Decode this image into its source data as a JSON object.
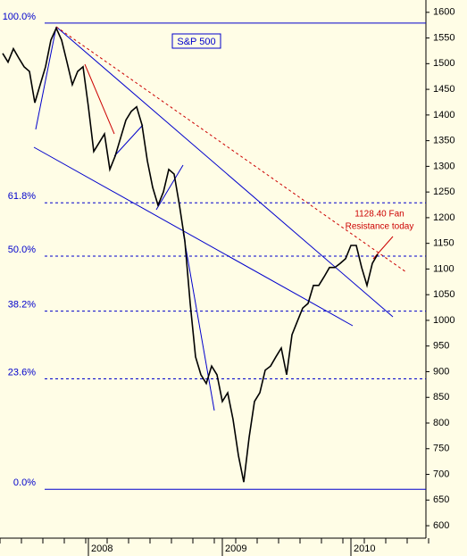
{
  "chart_data": {
    "type": "line",
    "title": "S&P 500",
    "categories": [
      null,
      null,
      null,
      null,
      null,
      null,
      null,
      null,
      null,
      null,
      null,
      null,
      null,
      null,
      null,
      null,
      "2008",
      null,
      null,
      null,
      null,
      null,
      null,
      null,
      null,
      null,
      null,
      null,
      null,
      null,
      null,
      null,
      null,
      null,
      null,
      null,
      null,
      null,
      null,
      null,
      null,
      "2009",
      null,
      null,
      null,
      null,
      null,
      null,
      null,
      null,
      null,
      null,
      null,
      null,
      null,
      null,
      null,
      null,
      null,
      null,
      null,
      null,
      null,
      null,
      null,
      "2010",
      null,
      null,
      null,
      null,
      null,
      null,
      null,
      null,
      null,
      null,
      null,
      null,
      null,
      null
    ],
    "series": [
      {
        "name": "S&P 500",
        "color": "#000000",
        "values": [
          1520,
          1503,
          1529,
          1511,
          1494,
          1485,
          1424,
          1459,
          1494,
          1546,
          1569,
          1546,
          1503,
          1459,
          1485,
          1494,
          1416,
          1329,
          1346,
          1363,
          1294,
          1320,
          1355,
          1390,
          1407,
          1416,
          1381,
          1311,
          1259,
          1224,
          1250,
          1294,
          1285,
          1224,
          1155,
          1033,
          929,
          894,
          877,
          911,
          894,
          842,
          859,
          807,
          737,
          685,
          772,
          842,
          859,
          903,
          911,
          929,
          946,
          894,
          972,
          998,
          1024,
          1033,
          1068,
          1068,
          1085,
          1103,
          1103,
          1111,
          1120,
          1146,
          1146,
          1103,
          1068,
          1111,
          1129,
          null,
          null,
          null,
          null,
          null,
          null,
          null,
          null,
          null
        ]
      }
    ],
    "ylim": [
      541,
      1624
    ],
    "yticks": [
      600,
      650,
      700,
      750,
      800,
      850,
      900,
      950,
      1000,
      1050,
      1100,
      1150,
      1200,
      1250,
      1300,
      1350,
      1400,
      1450,
      1500,
      1550,
      1600
    ],
    "levels": [
      {
        "label": "100.0%",
        "value": 1579
      },
      {
        "label": "61.8%",
        "value": 1229
      },
      {
        "label": "50.0%",
        "value": 1125
      },
      {
        "label": "38.2%",
        "value": 1018
      },
      {
        "label": "23.6%",
        "value": 886
      },
      {
        "label": "0.0%",
        "value": 671
      }
    ],
    "annotation": [
      "1128.40 Fan",
      "Resistance today"
    ]
  }
}
